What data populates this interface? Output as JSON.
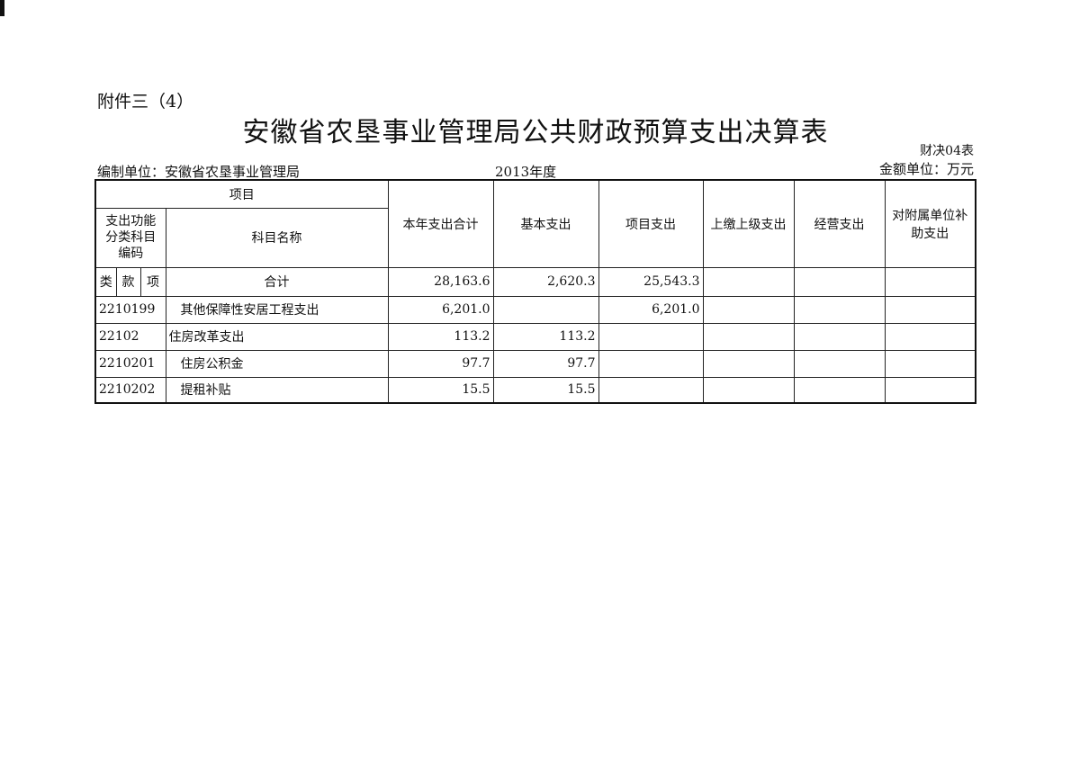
{
  "attachment": "附件三（4）",
  "title": "安徽省农垦事业管理局公共财政预算支出决算表",
  "form_no": "财决04表",
  "unit_label": "编制单位：安徽省农垦事业管理局",
  "year": "2013年度",
  "money_unit": "金额单位：万元",
  "headers": {
    "item": "项目",
    "code": "支出功能分类科目编码",
    "name": "科目名称",
    "lei": "类",
    "kuan": "款",
    "xiang": "项",
    "cols": [
      "本年支出合计",
      "基本支出",
      "项目支出",
      "上缴上级支出",
      "经营支出",
      "对附属单位补助支出"
    ]
  },
  "rows": [
    {
      "code": "",
      "name": "合计",
      "values": [
        "28,163.6",
        "2,620.3",
        "25,543.3",
        "",
        "",
        ""
      ]
    },
    {
      "code": "2210199",
      "name": "其他保障性安居工程支出",
      "values": [
        "6,201.0",
        "",
        "6,201.0",
        "",
        "",
        ""
      ]
    },
    {
      "code": "22102",
      "name": "住房改革支出",
      "values": [
        "113.2",
        "113.2",
        "",
        "",
        "",
        ""
      ]
    },
    {
      "code": "2210201",
      "name": "住房公积金",
      "values": [
        "97.7",
        "97.7",
        "",
        "",
        "",
        ""
      ]
    },
    {
      "code": "2210202",
      "name": "提租补贴",
      "values": [
        "15.5",
        "15.5",
        "",
        "",
        "",
        ""
      ]
    }
  ]
}
